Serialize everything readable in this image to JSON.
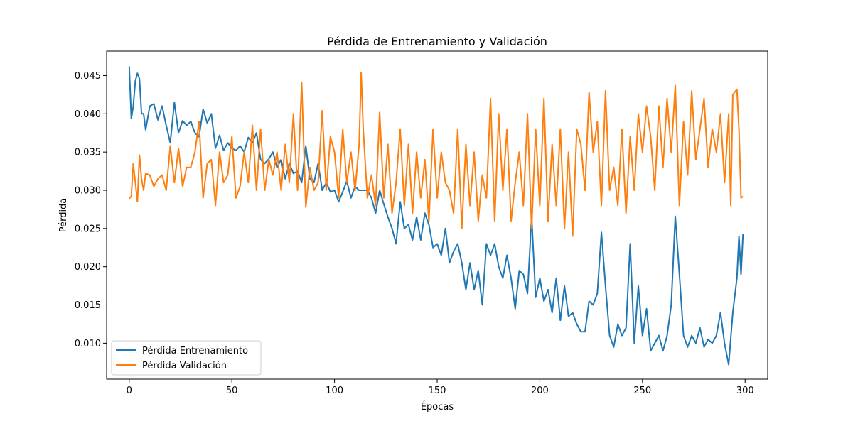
{
  "chart_data": {
    "type": "line",
    "title": "Pérdida de Entrenamiento y Validación",
    "xlabel": "Épocas",
    "ylabel": "Pérdida",
    "xlim": [
      -11,
      311
    ],
    "ylim": [
      0.0053,
      0.0482
    ],
    "xticks": [
      0,
      50,
      100,
      150,
      200,
      250,
      300
    ],
    "yticks": [
      0.01,
      0.015,
      0.02,
      0.025,
      0.03,
      0.035,
      0.04,
      0.045
    ],
    "grid": false,
    "legend_position": "lower-left",
    "series": [
      {
        "name": "Pérdida Entrenamiento",
        "color": "#1f77b4",
        "anchors": [
          [
            0,
            0.0462
          ],
          [
            1,
            0.0394
          ],
          [
            2,
            0.041
          ],
          [
            3,
            0.0443
          ],
          [
            4,
            0.0453
          ],
          [
            5,
            0.0446
          ],
          [
            6,
            0.04
          ],
          [
            7,
            0.04
          ],
          [
            8,
            0.0379
          ],
          [
            10,
            0.041
          ],
          [
            12,
            0.0413
          ],
          [
            14,
            0.0392
          ],
          [
            16,
            0.041
          ],
          [
            18,
            0.0385
          ],
          [
            20,
            0.0362
          ],
          [
            22,
            0.0415
          ],
          [
            24,
            0.0375
          ],
          [
            26,
            0.0391
          ],
          [
            28,
            0.0385
          ],
          [
            30,
            0.039
          ],
          [
            32,
            0.0375
          ],
          [
            34,
            0.037
          ],
          [
            36,
            0.0406
          ],
          [
            38,
            0.0388
          ],
          [
            40,
            0.04
          ],
          [
            42,
            0.0355
          ],
          [
            44,
            0.0372
          ],
          [
            46,
            0.0352
          ],
          [
            48,
            0.0362
          ],
          [
            50,
            0.0355
          ],
          [
            52,
            0.0352
          ],
          [
            54,
            0.0358
          ],
          [
            56,
            0.035
          ],
          [
            58,
            0.0369
          ],
          [
            60,
            0.0362
          ],
          [
            62,
            0.0375
          ],
          [
            64,
            0.034
          ],
          [
            66,
            0.0335
          ],
          [
            68,
            0.0341
          ],
          [
            70,
            0.035
          ],
          [
            72,
            0.033
          ],
          [
            74,
            0.034
          ],
          [
            76,
            0.0315
          ],
          [
            78,
            0.0335
          ],
          [
            80,
            0.0322
          ],
          [
            82,
            0.0325
          ],
          [
            84,
            0.031
          ],
          [
            86,
            0.0358
          ],
          [
            88,
            0.0315
          ],
          [
            90,
            0.031
          ],
          [
            92,
            0.0335
          ],
          [
            94,
            0.03
          ],
          [
            96,
            0.031
          ],
          [
            98,
            0.0298
          ],
          [
            100,
            0.03
          ],
          [
            102,
            0.0285
          ],
          [
            104,
            0.0298
          ],
          [
            106,
            0.0312
          ],
          [
            108,
            0.029
          ],
          [
            110,
            0.0305
          ],
          [
            112,
            0.03
          ],
          [
            114,
            0.03
          ],
          [
            116,
            0.03
          ],
          [
            118,
            0.029
          ],
          [
            120,
            0.027
          ],
          [
            122,
            0.03
          ],
          [
            124,
            0.0282
          ],
          [
            126,
            0.0265
          ],
          [
            128,
            0.025
          ],
          [
            130,
            0.023
          ],
          [
            132,
            0.0285
          ],
          [
            134,
            0.025
          ],
          [
            136,
            0.0255
          ],
          [
            138,
            0.0235
          ],
          [
            140,
            0.0265
          ],
          [
            142,
            0.0235
          ],
          [
            144,
            0.027
          ],
          [
            146,
            0.0255
          ],
          [
            148,
            0.0225
          ],
          [
            150,
            0.023
          ],
          [
            152,
            0.0215
          ],
          [
            154,
            0.025
          ],
          [
            156,
            0.0205
          ],
          [
            158,
            0.022
          ],
          [
            160,
            0.023
          ],
          [
            162,
            0.0205
          ],
          [
            164,
            0.017
          ],
          [
            166,
            0.0205
          ],
          [
            168,
            0.017
          ],
          [
            170,
            0.0195
          ],
          [
            172,
            0.015
          ],
          [
            174,
            0.023
          ],
          [
            176,
            0.0215
          ],
          [
            178,
            0.023
          ],
          [
            180,
            0.02
          ],
          [
            182,
            0.0185
          ],
          [
            184,
            0.0215
          ],
          [
            186,
            0.0185
          ],
          [
            188,
            0.0145
          ],
          [
            190,
            0.0195
          ],
          [
            192,
            0.019
          ],
          [
            194,
            0.0165
          ],
          [
            196,
            0.0265
          ],
          [
            198,
            0.016
          ],
          [
            200,
            0.0185
          ],
          [
            202,
            0.0155
          ],
          [
            204,
            0.017
          ],
          [
            206,
            0.014
          ],
          [
            208,
            0.0185
          ],
          [
            210,
            0.013
          ],
          [
            212,
            0.0175
          ],
          [
            214,
            0.0135
          ],
          [
            216,
            0.014
          ],
          [
            218,
            0.0125
          ],
          [
            220,
            0.0115
          ],
          [
            222,
            0.0115
          ],
          [
            224,
            0.0155
          ],
          [
            226,
            0.015
          ],
          [
            228,
            0.0165
          ],
          [
            230,
            0.0245
          ],
          [
            232,
            0.0175
          ],
          [
            234,
            0.011
          ],
          [
            236,
            0.0095
          ],
          [
            238,
            0.0125
          ],
          [
            240,
            0.011
          ],
          [
            242,
            0.012
          ],
          [
            244,
            0.023
          ],
          [
            246,
            0.01
          ],
          [
            248,
            0.0175
          ],
          [
            250,
            0.011
          ],
          [
            252,
            0.0145
          ],
          [
            254,
            0.009
          ],
          [
            256,
            0.01
          ],
          [
            258,
            0.011
          ],
          [
            260,
            0.009
          ],
          [
            262,
            0.011
          ],
          [
            264,
            0.015
          ],
          [
            266,
            0.0266
          ],
          [
            268,
            0.019
          ],
          [
            270,
            0.011
          ],
          [
            272,
            0.0095
          ],
          [
            274,
            0.011
          ],
          [
            276,
            0.01
          ],
          [
            278,
            0.012
          ],
          [
            280,
            0.0095
          ],
          [
            282,
            0.0105
          ],
          [
            284,
            0.01
          ],
          [
            286,
            0.011
          ],
          [
            288,
            0.014
          ],
          [
            290,
            0.01
          ],
          [
            292,
            0.0072
          ],
          [
            294,
            0.014
          ],
          [
            296,
            0.0185
          ],
          [
            297,
            0.024
          ],
          [
            298,
            0.019
          ],
          [
            299,
            0.0243
          ]
        ]
      },
      {
        "name": "Pérdida Validación",
        "color": "#ff7f0e",
        "anchors": [
          [
            0,
            0.0289
          ],
          [
            1,
            0.0292
          ],
          [
            2,
            0.0335
          ],
          [
            3,
            0.031
          ],
          [
            4,
            0.0285
          ],
          [
            5,
            0.0346
          ],
          [
            6,
            0.0315
          ],
          [
            7,
            0.03
          ],
          [
            8,
            0.0322
          ],
          [
            10,
            0.032
          ],
          [
            12,
            0.0305
          ],
          [
            14,
            0.0315
          ],
          [
            16,
            0.032
          ],
          [
            18,
            0.03
          ],
          [
            20,
            0.0358
          ],
          [
            22,
            0.031
          ],
          [
            24,
            0.0355
          ],
          [
            26,
            0.0305
          ],
          [
            28,
            0.033
          ],
          [
            30,
            0.033
          ],
          [
            32,
            0.035
          ],
          [
            34,
            0.039
          ],
          [
            36,
            0.029
          ],
          [
            38,
            0.0335
          ],
          [
            40,
            0.034
          ],
          [
            42,
            0.028
          ],
          [
            44,
            0.035
          ],
          [
            46,
            0.031
          ],
          [
            48,
            0.032
          ],
          [
            50,
            0.037
          ],
          [
            52,
            0.029
          ],
          [
            54,
            0.0305
          ],
          [
            56,
            0.035
          ],
          [
            58,
            0.031
          ],
          [
            60,
            0.0385
          ],
          [
            62,
            0.03
          ],
          [
            64,
            0.038
          ],
          [
            66,
            0.03
          ],
          [
            68,
            0.034
          ],
          [
            70,
            0.032
          ],
          [
            72,
            0.035
          ],
          [
            74,
            0.03
          ],
          [
            76,
            0.036
          ],
          [
            78,
            0.031
          ],
          [
            80,
            0.04
          ],
          [
            82,
            0.03
          ],
          [
            84,
            0.0441
          ],
          [
            86,
            0.0278
          ],
          [
            88,
            0.033
          ],
          [
            90,
            0.03
          ],
          [
            92,
            0.031
          ],
          [
            94,
            0.0404
          ],
          [
            96,
            0.03
          ],
          [
            98,
            0.037
          ],
          [
            100,
            0.035
          ],
          [
            102,
            0.029
          ],
          [
            104,
            0.038
          ],
          [
            106,
            0.031
          ],
          [
            108,
            0.035
          ],
          [
            110,
            0.03
          ],
          [
            112,
            0.036
          ],
          [
            113,
            0.0454
          ],
          [
            114,
            0.038
          ],
          [
            116,
            0.029
          ],
          [
            118,
            0.032
          ],
          [
            120,
            0.028
          ],
          [
            122,
            0.0402
          ],
          [
            124,
            0.029
          ],
          [
            126,
            0.036
          ],
          [
            128,
            0.027
          ],
          [
            130,
            0.031
          ],
          [
            132,
            0.038
          ],
          [
            134,
            0.028
          ],
          [
            136,
            0.036
          ],
          [
            138,
            0.027
          ],
          [
            140,
            0.035
          ],
          [
            142,
            0.029
          ],
          [
            144,
            0.034
          ],
          [
            146,
            0.026
          ],
          [
            148,
            0.038
          ],
          [
            150,
            0.029
          ],
          [
            152,
            0.035
          ],
          [
            154,
            0.031
          ],
          [
            156,
            0.03
          ],
          [
            158,
            0.027
          ],
          [
            160,
            0.038
          ],
          [
            162,
            0.025
          ],
          [
            164,
            0.036
          ],
          [
            166,
            0.028
          ],
          [
            168,
            0.035
          ],
          [
            170,
            0.026
          ],
          [
            172,
            0.032
          ],
          [
            174,
            0.029
          ],
          [
            176,
            0.042
          ],
          [
            178,
            0.026
          ],
          [
            180,
            0.04
          ],
          [
            182,
            0.03
          ],
          [
            184,
            0.038
          ],
          [
            186,
            0.026
          ],
          [
            188,
            0.031
          ],
          [
            190,
            0.035
          ],
          [
            192,
            0.028
          ],
          [
            194,
            0.04
          ],
          [
            196,
            0.025
          ],
          [
            198,
            0.038
          ],
          [
            200,
            0.028
          ],
          [
            202,
            0.042
          ],
          [
            204,
            0.026
          ],
          [
            206,
            0.036
          ],
          [
            208,
            0.028
          ],
          [
            210,
            0.038
          ],
          [
            212,
            0.025
          ],
          [
            214,
            0.035
          ],
          [
            216,
            0.024
          ],
          [
            218,
            0.038
          ],
          [
            220,
            0.036
          ],
          [
            222,
            0.03
          ],
          [
            224,
            0.0428
          ],
          [
            226,
            0.035
          ],
          [
            228,
            0.039
          ],
          [
            230,
            0.028
          ],
          [
            232,
            0.043
          ],
          [
            234,
            0.03
          ],
          [
            236,
            0.033
          ],
          [
            238,
            0.028
          ],
          [
            240,
            0.038
          ],
          [
            242,
            0.027
          ],
          [
            244,
            0.037
          ],
          [
            246,
            0.03
          ],
          [
            248,
            0.04
          ],
          [
            250,
            0.035
          ],
          [
            252,
            0.041
          ],
          [
            254,
            0.037
          ],
          [
            256,
            0.03
          ],
          [
            258,
            0.041
          ],
          [
            260,
            0.033
          ],
          [
            262,
            0.042
          ],
          [
            264,
            0.035
          ],
          [
            266,
            0.0437
          ],
          [
            268,
            0.028
          ],
          [
            270,
            0.039
          ],
          [
            272,
            0.032
          ],
          [
            274,
            0.043
          ],
          [
            276,
            0.034
          ],
          [
            278,
            0.038
          ],
          [
            280,
            0.042
          ],
          [
            282,
            0.033
          ],
          [
            284,
            0.038
          ],
          [
            286,
            0.035
          ],
          [
            288,
            0.04
          ],
          [
            290,
            0.031
          ],
          [
            292,
            0.04
          ],
          [
            293,
            0.028
          ],
          [
            294,
            0.0425
          ],
          [
            296,
            0.0432
          ],
          [
            297,
            0.038
          ],
          [
            298,
            0.029
          ],
          [
            299,
            0.0292
          ]
        ]
      }
    ]
  }
}
